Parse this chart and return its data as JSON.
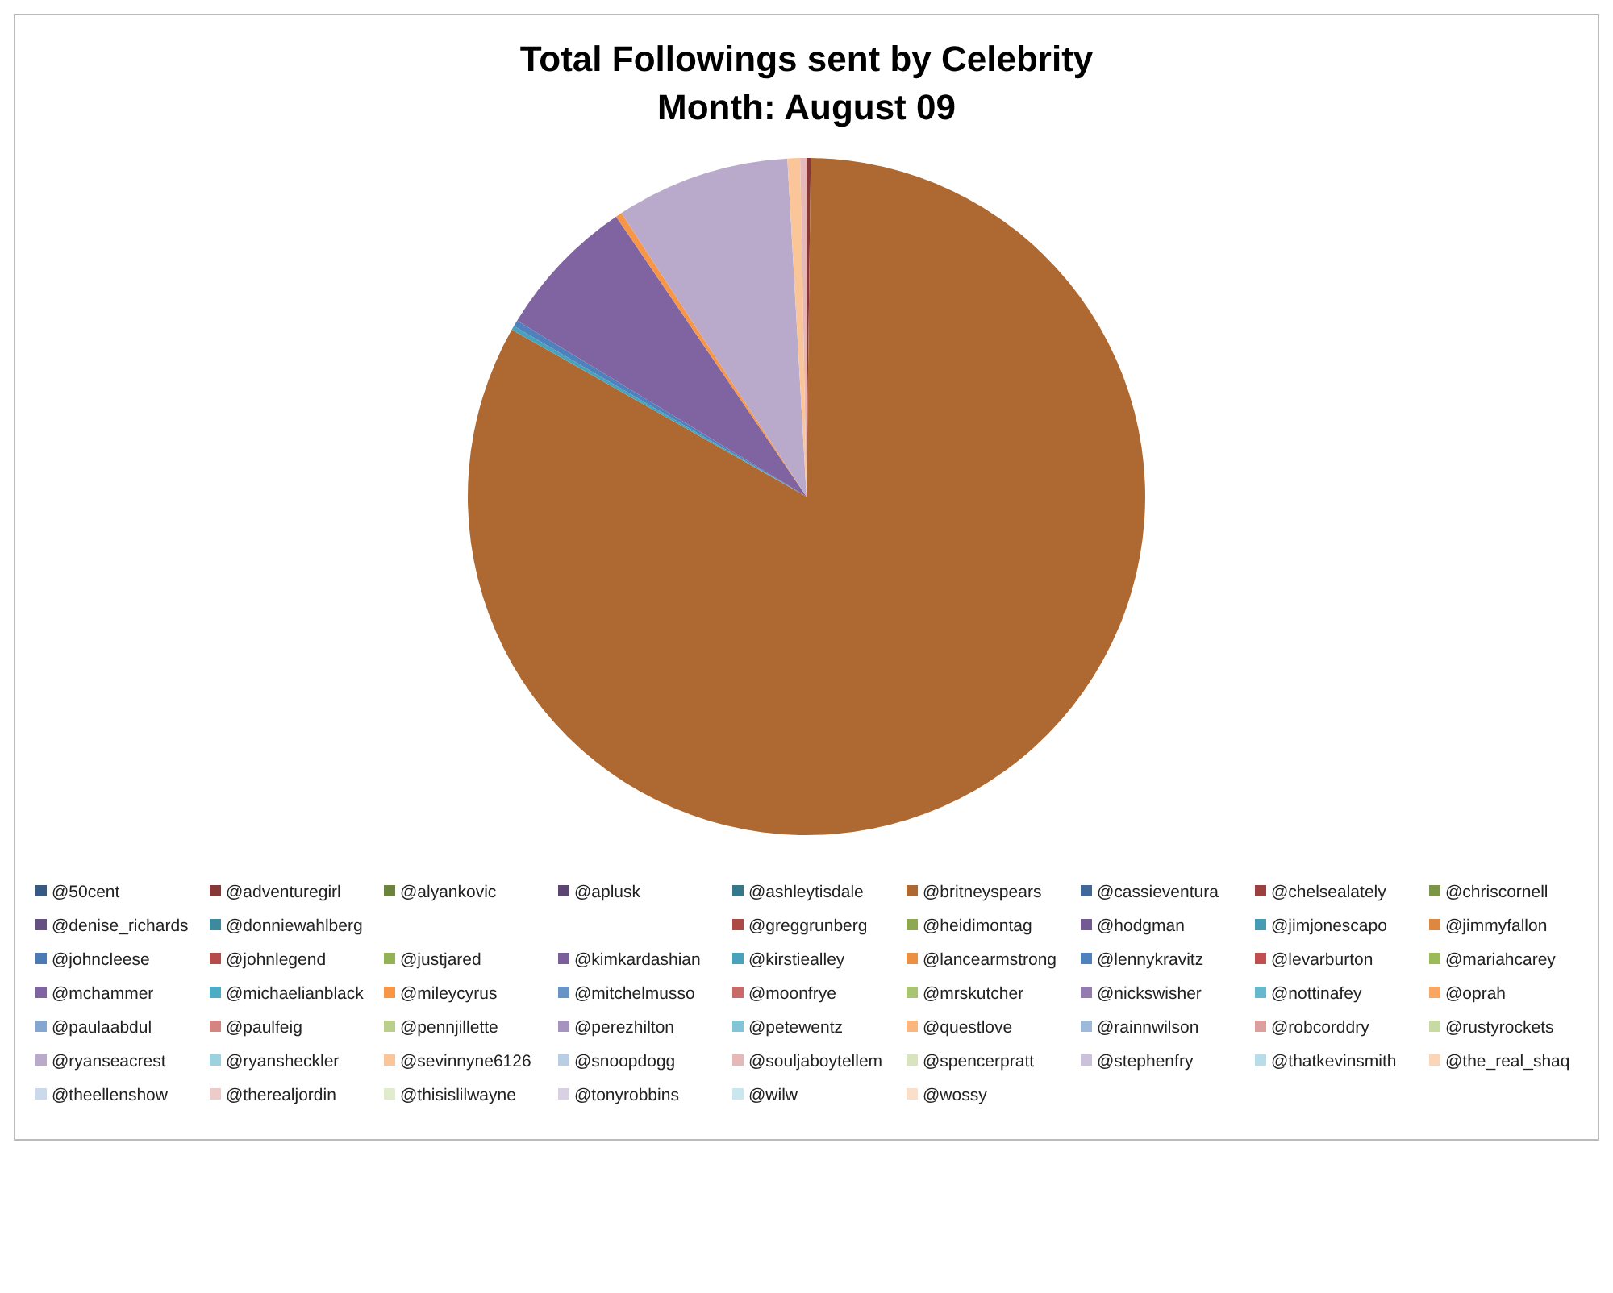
{
  "chart_data": {
    "type": "pie",
    "title": "Total Followings sent by Celebrity",
    "subtitle": "Month: August 09",
    "legend": "bottom",
    "categories": [
      "@50cent",
      "@adventuregirl",
      "@alyankovic",
      "@aplusk",
      "@ashleytisdale",
      "@britneyspears",
      "@cassieventura",
      "@chelsealately",
      "@chriscornell",
      "@denise_richards",
      "@donniewahlberg",
      null,
      null,
      "@greggrunberg",
      "@heidimontag",
      "@hodgman",
      "@jimjonescapo",
      "@jimmyfallon",
      "@johncleese",
      "@johnlegend",
      "@justjared",
      "@kimkardashian",
      "@kirstiealley",
      "@lancearmstrong",
      "@lennykravitz",
      "@levarburton",
      "@mariahcarey",
      "@mchammer",
      "@michaelianblack",
      "@mileycyrus",
      "@mitchelmusso",
      "@moonfrye",
      "@mrskutcher",
      "@nickswisher",
      "@nottinafey",
      "@oprah",
      "@paulaabdul",
      "@paulfeig",
      "@pennjillette",
      "@perezhilton",
      "@petewentz",
      "@questlove",
      "@rainnwilson",
      "@robcorddry",
      "@rustyrockets",
      "@ryanseacrest",
      "@ryansheckler",
      "@sevinnyne6126",
      "@snoopdogg",
      "@souljaboytellem",
      "@spencerpratt",
      "@stephenfry",
      "@thatkevinsmith",
      "@the_real_shaq",
      "@theellenshow",
      "@therealjordin",
      "@thisislilwayne",
      "@tonyrobbins",
      "@wilw",
      "@wossy"
    ],
    "values": [
      0,
      0.2,
      0,
      0,
      0,
      83,
      0,
      0,
      0,
      0,
      0,
      0,
      0,
      0,
      0,
      0,
      0,
      0,
      0,
      0,
      0,
      0,
      0.2,
      0,
      0.3,
      0,
      0,
      6.8,
      0,
      0.3,
      0,
      0,
      0,
      0,
      0,
      0,
      0,
      0,
      0,
      0,
      0,
      0,
      0,
      0,
      0,
      8.3,
      0,
      0.6,
      0,
      0.3,
      0,
      0,
      0,
      0,
      0,
      0,
      0,
      0,
      0,
      0
    ],
    "colors": [
      "#375a84",
      "#863836",
      "#6c833e",
      "#5a4671",
      "#35788b",
      "#ad6931",
      "#3f6797",
      "#9a403e",
      "#7c9647",
      "#665082",
      "#3c8a9e",
      "#c67838",
      "#4774aa",
      "#ad4845",
      "#8ca850",
      "#735a92",
      "#449bb2",
      "#de873f",
      "#4b7bb4",
      "#b64c49",
      "#93b255",
      "#7a5f9a",
      "#47a3bc",
      "#eb8f43",
      "#4f81bd",
      "#c0504d",
      "#9bbb59",
      "#8064a2",
      "#4bacc6",
      "#f79646",
      "#6994c7",
      "#c96a68",
      "#aac572",
      "#937bb0",
      "#66b8cf",
      "#f8a662",
      "#84a7d1",
      "#d38582",
      "#b9cf8b",
      "#a693be",
      "#81c5d7",
      "#f9b67e",
      "#9ebadb",
      "#dc9f9d",
      "#c8daa4",
      "#b9aacc",
      "#9cd2e0",
      "#fac599",
      "#b9cde5",
      "#e6b9b8",
      "#d7e4bd",
      "#ccc1da",
      "#b7dee8",
      "#fbd5b5",
      "#cad9ec",
      "#eccbca",
      "#e1ebcd",
      "#d9d1e3",
      "#c9e7ee",
      "#fcdfc8"
    ]
  }
}
